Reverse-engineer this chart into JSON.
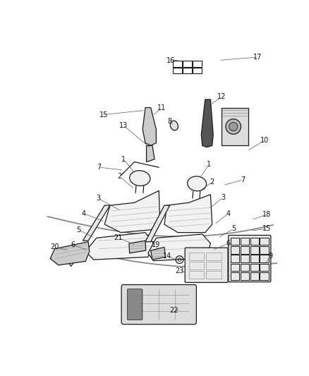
{
  "bg_color": "#ffffff",
  "line_color": "#1a1a1a",
  "gray_color": "#666666",
  "figsize": [
    4.38,
    5.33
  ],
  "dpi": 100,
  "seat_line_color": "#222222",
  "curve_color": "#555555",
  "label_fs": 7,
  "leader_color": "#555555"
}
